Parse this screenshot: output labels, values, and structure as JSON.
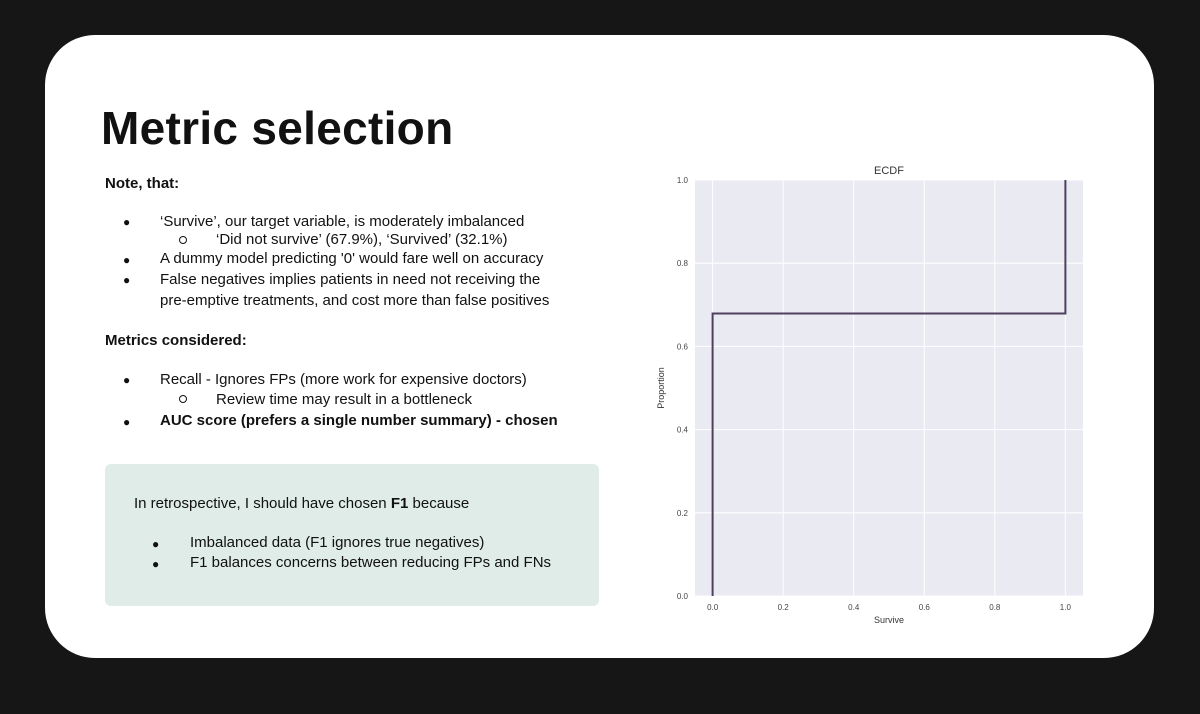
{
  "slide": {
    "title": "Metric selection",
    "note_heading": "Note, that:",
    "note_items": [
      "‘Survive’, our target variable, is moderately imbalanced",
      "A dummy model predicting '0' would fare well on accuracy",
      "False negatives implies patients in need not receiving the",
      "pre-emptive treatments, and cost more than false positives"
    ],
    "note_subitems": [
      "‘Did not survive’ (67.9%),   ‘Survived’ (32.1%)"
    ],
    "metrics_heading": "Metrics considered:",
    "metric_items": [
      "Recall - Ignores FPs (more work for expensive doctors)",
      "AUC score (prefers a single number summary) - chosen"
    ],
    "metric_subitems": [
      "Review time may result in a bottleneck"
    ],
    "callout": {
      "intro_before": "In retrospective, I should have chosen ",
      "intro_bold": "F1",
      "intro_after": " because",
      "items": [
        "Imbalanced data (F1 ignores true negatives)",
        "F1 balances concerns between reducing FPs and FNs"
      ]
    }
  },
  "chart_data": {
    "type": "line",
    "title": "ECDF",
    "xlabel": "Survive",
    "ylabel": "Proportion",
    "xlim": [
      -0.05,
      1.05
    ],
    "ylim": [
      0,
      1
    ],
    "x_ticks": [
      "0.0",
      "0.2",
      "0.4",
      "0.6",
      "0.8",
      "1.0"
    ],
    "y_ticks": [
      "0.0",
      "0.2",
      "0.4",
      "0.6",
      "0.8",
      "1.0"
    ],
    "grid": true,
    "series": [
      {
        "x": [
          0,
          0,
          1,
          1
        ],
        "y": [
          0,
          0.679,
          0.679,
          1.0
        ]
      }
    ],
    "colors": {
      "line": "#4f4060",
      "plot_bg": "#eaeaf2",
      "grid": "#ffffff"
    }
  }
}
